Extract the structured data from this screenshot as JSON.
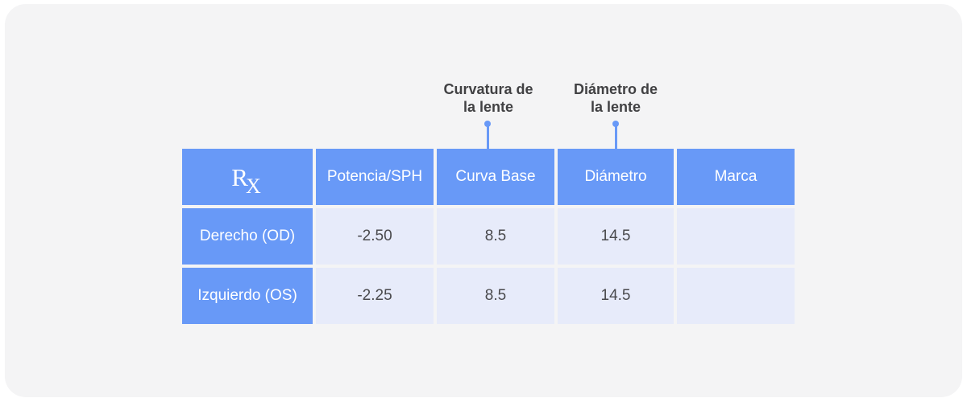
{
  "colors": {
    "accent": "#6899f7",
    "cell_bg": "#e7ebfa",
    "card_bg": "#f4f4f5",
    "annotation_text": "#414143",
    "data_text": "#4a4a4d"
  },
  "annotations": {
    "curva_base": {
      "line1": "Curvatura de",
      "line2": "la lente"
    },
    "diametro": {
      "line1": "Diámetro de",
      "line2": "la lente"
    }
  },
  "table": {
    "header": {
      "rx_r": "R",
      "rx_x": "X",
      "potencia": "Potencia/SPH",
      "curva_base": "Curva Base",
      "diametro": "Diámetro",
      "marca": "Marca"
    },
    "rows": [
      {
        "label": "Derecho (OD)",
        "potencia": "-2.50",
        "curva_base": "8.5",
        "diametro": "14.5",
        "marca": ""
      },
      {
        "label": "Izquierdo (OS)",
        "potencia": "-2.25",
        "curva_base": "8.5",
        "diametro": "14.5",
        "marca": ""
      }
    ]
  }
}
